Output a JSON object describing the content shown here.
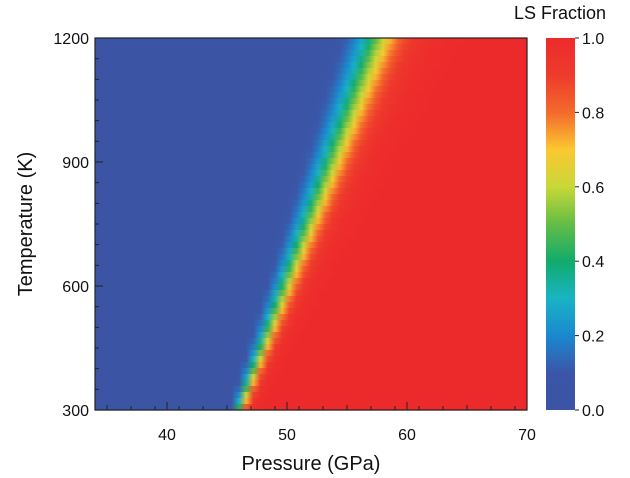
{
  "chart_data": {
    "type": "heatmap",
    "title": "",
    "xlabel": "Pressure (GPa)",
    "ylabel": "Temperature (K)",
    "xlim": [
      34,
      70
    ],
    "ylim": [
      300,
      1200
    ],
    "x_ticks": [
      40,
      50,
      60,
      70
    ],
    "x_tick_labels": [
      "40",
      "50",
      "60",
      "70"
    ],
    "y_ticks": [
      300,
      600,
      900,
      1200
    ],
    "y_tick_labels": [
      "300",
      "600",
      "900",
      "1200"
    ],
    "colorbar": {
      "title": "LS Fraction",
      "range": [
        0.0,
        1.0
      ],
      "ticks": [
        0.0,
        0.2,
        0.4,
        0.6,
        0.8,
        1.0
      ],
      "tick_labels": [
        "0.0",
        "0.2",
        "0.4",
        "0.6",
        "0.8",
        "1.0"
      ],
      "colormap": [
        {
          "v": 0.0,
          "color": "#3b54a4"
        },
        {
          "v": 0.1,
          "color": "#3b56a8"
        },
        {
          "v": 0.2,
          "color": "#1a88d0"
        },
        {
          "v": 0.3,
          "color": "#19b4c4"
        },
        {
          "v": 0.4,
          "color": "#11ab6c"
        },
        {
          "v": 0.5,
          "color": "#63bd45"
        },
        {
          "v": 0.6,
          "color": "#c8d838"
        },
        {
          "v": 0.7,
          "color": "#fbc830"
        },
        {
          "v": 0.8,
          "color": "#f36a2c"
        },
        {
          "v": 0.9,
          "color": "#ee3b2c"
        },
        {
          "v": 1.0,
          "color": "#ed2a2b"
        }
      ]
    },
    "transition_midpoint": [
      {
        "temperature": 300,
        "pressure": 46.0
      },
      {
        "temperature": 1200,
        "pressure": 57.5
      }
    ],
    "transition_width": [
      {
        "temperature": 300,
        "width": 1.4
      },
      {
        "temperature": 1200,
        "width": 5.5
      }
    ]
  }
}
